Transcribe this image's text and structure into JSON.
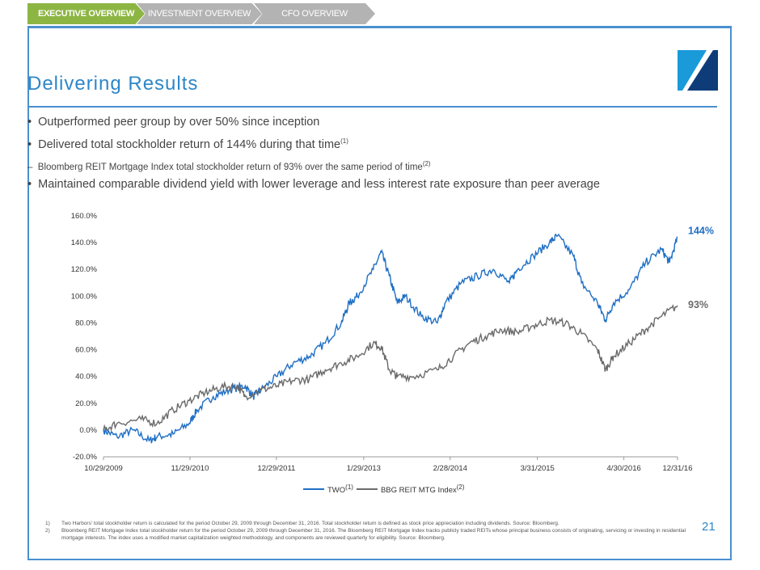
{
  "tabs": [
    "EXECUTIVE OVERVIEW",
    "INVESTMENT OVERVIEW",
    "CFO OVERVIEW"
  ],
  "title": "Delivering Results",
  "bullets": [
    {
      "text": "Outperformed peer group by over 50% since inception"
    },
    {
      "text": "Delivered total stockholder return of 144% during that time",
      "sup": "(1)"
    },
    {
      "text": "Bloomberg REIT Mortgage Index total stockholder return of 93% over the same period of time",
      "sup": "(2)",
      "sub": true
    },
    {
      "text": "Maintained comparable dividend yield with lower leverage and less interest rate exposure than peer average"
    }
  ],
  "chart_data": {
    "type": "line",
    "ylim": [
      -20,
      160
    ],
    "yticks": [
      "-20.0%",
      "0.0%",
      "20.0%",
      "40.0%",
      "60.0%",
      "80.0%",
      "100.0%",
      "120.0%",
      "140.0%",
      "160.0%"
    ],
    "xlim": [
      2009.83,
      2017.0
    ],
    "xticks": [
      {
        "v": 2009.83,
        "label": "10/29/2009"
      },
      {
        "v": 2010.91,
        "label": "11/29/2010"
      },
      {
        "v": 2011.99,
        "label": "12/29/2011"
      },
      {
        "v": 2013.08,
        "label": "1/29/2013"
      },
      {
        "v": 2014.16,
        "label": "2/28/2014"
      },
      {
        "v": 2015.25,
        "label": "3/31/2015"
      },
      {
        "v": 2016.33,
        "label": "4/30/2016"
      },
      {
        "v": 2017.0,
        "label": "12/31/16"
      }
    ],
    "series": [
      {
        "name": "TWO",
        "sup": "(1)",
        "color": "#1f6fc4",
        "end_label": "144%",
        "x": [
          2009.83,
          2010.0,
          2010.2,
          2010.4,
          2010.5,
          2010.7,
          2010.9,
          2011.0,
          2011.2,
          2011.4,
          2011.6,
          2011.7,
          2011.8,
          2012.0,
          2012.2,
          2012.4,
          2012.6,
          2012.8,
          2012.9,
          2013.0,
          2013.2,
          2013.3,
          2013.4,
          2013.5,
          2013.6,
          2013.8,
          2014.0,
          2014.1,
          2014.3,
          2014.5,
          2014.7,
          2014.9,
          2015.0,
          2015.2,
          2015.4,
          2015.5,
          2015.7,
          2015.8,
          2016.0,
          2016.1,
          2016.2,
          2016.4,
          2016.6,
          2016.8,
          2016.9,
          2017.0
        ],
        "y": [
          0,
          -5,
          0,
          -8,
          -5,
          -3,
          5,
          15,
          25,
          30,
          33,
          25,
          30,
          40,
          50,
          55,
          65,
          80,
          95,
          100,
          120,
          133,
          115,
          95,
          100,
          85,
          80,
          95,
          110,
          115,
          120,
          110,
          120,
          130,
          140,
          145,
          130,
          110,
          95,
          82,
          95,
          105,
          125,
          135,
          125,
          144
        ]
      },
      {
        "name": "BBG REIT MTG Index",
        "sup": "(2)",
        "color": "#6b6b6b",
        "end_label": "93%",
        "x": [
          2009.83,
          2010.0,
          2010.3,
          2010.5,
          2010.7,
          2010.9,
          2011.1,
          2011.3,
          2011.5,
          2011.6,
          2011.8,
          2012.0,
          2012.2,
          2012.4,
          2012.6,
          2012.8,
          2013.0,
          2013.2,
          2013.3,
          2013.4,
          2013.5,
          2013.7,
          2014.0,
          2014.2,
          2014.4,
          2014.6,
          2014.8,
          2015.0,
          2015.2,
          2015.4,
          2015.6,
          2015.8,
          2016.0,
          2016.1,
          2016.2,
          2016.4,
          2016.6,
          2016.8,
          2017.0
        ],
        "y": [
          0,
          5,
          8,
          5,
          15,
          22,
          28,
          32,
          33,
          25,
          30,
          33,
          37,
          38,
          45,
          50,
          55,
          65,
          62,
          45,
          40,
          40,
          45,
          55,
          65,
          70,
          75,
          73,
          78,
          82,
          80,
          72,
          60,
          45,
          55,
          65,
          75,
          85,
          93
        ]
      }
    ]
  },
  "footnotes": [
    {
      "n": "1)",
      "text": "Two Harbors' total stockholder return is calculated for the period October 29, 2009 through December 31, 2016. Total stockholder return is defined as stock price appreciation including dividends. Source: Bloomberg."
    },
    {
      "n": "2)",
      "text": "Bloomberg REIT Mortgage Index total stockholder return for the period October 29, 2009 through December 31, 2016. The Bloomberg REIT Mortgage Index tracks publicly traded REITs whose principal business consists of originating, servicing or investing in residential mortgage interests. The index uses a modified market capitalization weighted methodology, and components are reviewed quarterly for eligibility. Source: Bloomberg."
    }
  ],
  "page_number": "21"
}
